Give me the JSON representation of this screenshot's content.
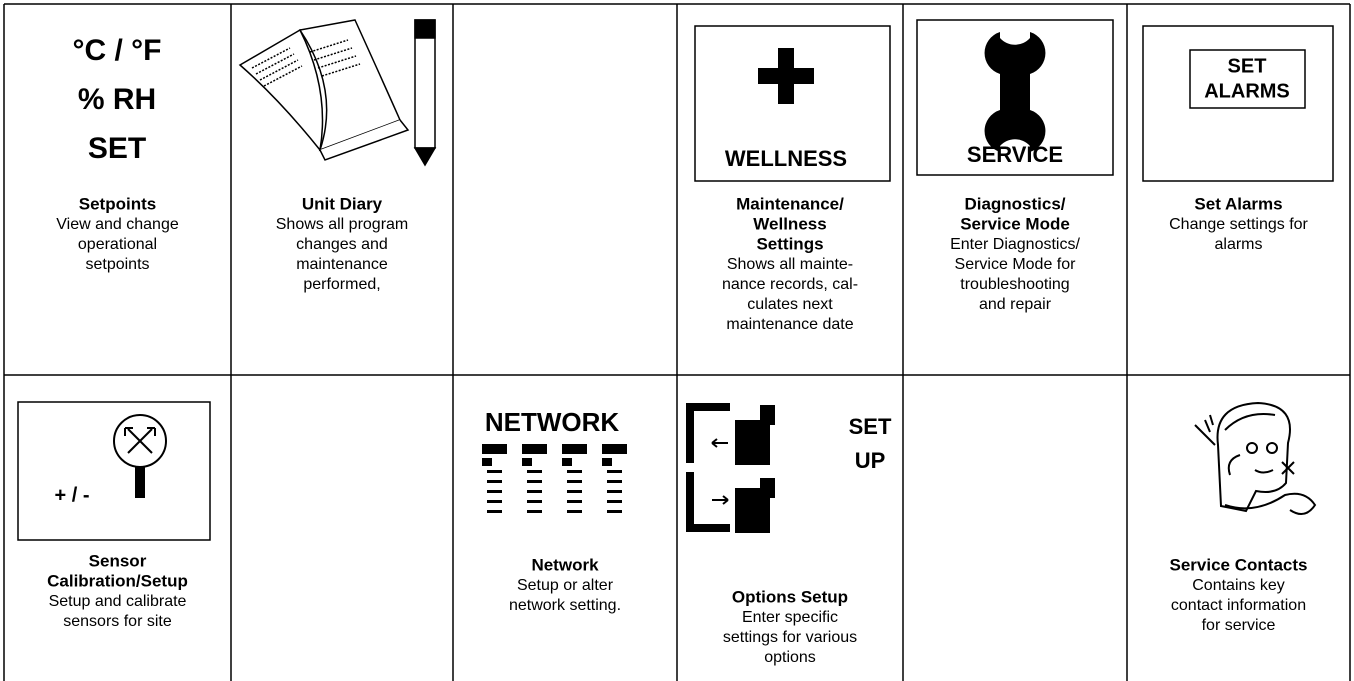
{
  "rows": [
    [
      {
        "icon_text": [
          "°C / °F",
          "% RH",
          "SET"
        ],
        "title": [
          "Setpoints"
        ],
        "description": [
          "View and change",
          "operational",
          "setpoints"
        ]
      },
      {
        "title": [
          "Unit Diary"
        ],
        "description": [
          "Shows all program",
          "changes and",
          "maintenance",
          "performed,"
        ]
      },
      null,
      {
        "icon_text": [
          "WELLNESS"
        ],
        "title": [
          "Maintenance/",
          "Wellness",
          "Settings"
        ],
        "description": [
          "Shows all mainte-",
          "nance records, cal-",
          "culates next",
          "maintenance date"
        ]
      },
      {
        "icon_text": [
          "SERVICE"
        ],
        "title": [
          "Diagnostics/",
          "Service Mode"
        ],
        "description": [
          "Enter Diagnostics/",
          "Service Mode for",
          "troubleshooting",
          "and repair"
        ]
      },
      {
        "icon_text": [
          "SET",
          "ALARMS"
        ],
        "title": [
          "Set Alarms"
        ],
        "description": [
          "Change settings for",
          "alarms"
        ]
      }
    ],
    [
      {
        "icon_text": [
          "+ / -"
        ],
        "title": [
          "Sensor",
          "Calibration/Setup"
        ],
        "description": [
          "Setup and calibrate",
          "sensors for site"
        ]
      },
      null,
      {
        "icon_text": [
          "NETWORK"
        ],
        "title": [
          "Network"
        ],
        "description": [
          "Setup or alter",
          "network setting."
        ]
      },
      {
        "icon_text": [
          "SET",
          "UP"
        ],
        "title": [
          "Options Setup"
        ],
        "description": [
          "Enter specific",
          "settings for various",
          "options"
        ]
      },
      null,
      {
        "title": [
          "Service Contacts"
        ],
        "description": [
          "Contains key",
          "contact information",
          "for service"
        ]
      }
    ]
  ]
}
